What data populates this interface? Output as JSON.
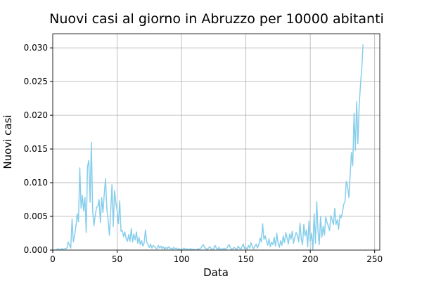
{
  "chart_data": {
    "type": "line",
    "title": "Nuovi casi al giorno in Abruzzo per 10000 abitanti",
    "x_label": "Data",
    "y_label": "Nuovi casi",
    "xlim": [
      0,
      254
    ],
    "ylim": [
      0,
      0.0321
    ],
    "xticks": [
      0,
      50,
      100,
      150,
      200,
      250
    ],
    "yticks": [
      {
        "value": 0,
        "label": "0.000"
      },
      {
        "value": 0.005,
        "label": "0.005"
      },
      {
        "value": 0.01,
        "label": "0.010"
      },
      {
        "value": 0.015,
        "label": "0.015"
      },
      {
        "value": 0.02,
        "label": "0.020"
      },
      {
        "value": 0.025,
        "label": "0.025"
      },
      {
        "value": 0.03,
        "label": "0.030"
      }
    ],
    "grid": true,
    "x": [
      0,
      1,
      2,
      3,
      4,
      5,
      6,
      7,
      8,
      9,
      10,
      11,
      12,
      13,
      14,
      15,
      16,
      17,
      18,
      19,
      20,
      21,
      22,
      23,
      24,
      25,
      26,
      27,
      28,
      29,
      30,
      31,
      32,
      33,
      34,
      35,
      36,
      37,
      38,
      39,
      40,
      41,
      42,
      43,
      44,
      45,
      46,
      47,
      48,
      49,
      50,
      51,
      52,
      53,
      54,
      55,
      56,
      57,
      58,
      59,
      60,
      61,
      62,
      63,
      64,
      65,
      66,
      67,
      68,
      69,
      70,
      71,
      72,
      73,
      74,
      75,
      76,
      77,
      78,
      79,
      80,
      81,
      82,
      83,
      84,
      85,
      86,
      87,
      88,
      89,
      90,
      91,
      92,
      93,
      94,
      95,
      96,
      97,
      98,
      99,
      100,
      101,
      102,
      103,
      104,
      105,
      106,
      107,
      108,
      109,
      110,
      111,
      112,
      113,
      114,
      115,
      116,
      117,
      118,
      119,
      120,
      121,
      122,
      123,
      124,
      125,
      126,
      127,
      128,
      129,
      130,
      131,
      132,
      133,
      134,
      135,
      136,
      137,
      138,
      139,
      140,
      141,
      142,
      143,
      144,
      145,
      146,
      147,
      148,
      149,
      150,
      151,
      152,
      153,
      154,
      155,
      156,
      157,
      158,
      159,
      160,
      161,
      162,
      163,
      164,
      165,
      166,
      167,
      168,
      169,
      170,
      171,
      172,
      173,
      174,
      175,
      176,
      177,
      178,
      179,
      180,
      181,
      182,
      183,
      184,
      185,
      186,
      187,
      188,
      189,
      190,
      191,
      192,
      193,
      194,
      195,
      196,
      197,
      198,
      199,
      200,
      201,
      202,
      203,
      204,
      205,
      206,
      207,
      208,
      209,
      210,
      211,
      212,
      213,
      214,
      215,
      216,
      217,
      218,
      219,
      220,
      221,
      222,
      223,
      224,
      225,
      226,
      227,
      228,
      229,
      230,
      231,
      232,
      233,
      234,
      235,
      236,
      237,
      238,
      239,
      240,
      241
    ],
    "series": [
      {
        "color": "#87ceeb",
        "values": [
          0,
          0,
          0,
          0.0001,
          0.0002,
          0.0001,
          0.0001,
          0.0002,
          0.0001,
          0.0002,
          0.0002,
          0.0003,
          0.0012,
          0.0007,
          0.0003,
          0.0046,
          0.0012,
          0.0022,
          0.0035,
          0.0054,
          0.0042,
          0.0122,
          0.0062,
          0.0081,
          0.0058,
          0.0078,
          0.0026,
          0.0124,
          0.0133,
          0.0071,
          0.016,
          0.0058,
          0.0036,
          0.0052,
          0.0063,
          0.0065,
          0.0075,
          0.0041,
          0.0078,
          0.0056,
          0.0083,
          0.0106,
          0.0061,
          0.0045,
          0.0022,
          0.0057,
          0.0097,
          0.0035,
          0.0088,
          0.0071,
          0.0058,
          0.0039,
          0.0073,
          0.0028,
          0.0029,
          0.002,
          0.0027,
          0.0017,
          0.0013,
          0.0023,
          0.0013,
          0.0032,
          0.0012,
          0.0024,
          0.0015,
          0.0027,
          0.001,
          0.0019,
          0.0008,
          0.0014,
          0.0006,
          0.0011,
          0.003,
          0.0012,
          0.0008,
          0.0004,
          0.0009,
          0.0003,
          0.0007,
          0.0005,
          0.0003,
          0.0002,
          0.0007,
          0.0003,
          0.0006,
          0.0002,
          0.0005,
          0.0001,
          0.0004,
          0.0002,
          0.0005,
          0.0002,
          0.0003,
          0.0001,
          0.0004,
          0.0002,
          0.0003,
          0.0001,
          0.0002,
          0.0001,
          0.0002,
          0.0001,
          0.0003,
          0.0001,
          0.0002,
          0.0001,
          0.0001,
          0.0002,
          0.0001,
          0.0001,
          0.0001,
          0,
          0.0001,
          0.0002,
          0.0001,
          0.0003,
          0.0006,
          0.0008,
          0.0004,
          0.0002,
          0.0001,
          0.0003,
          0.0005,
          0.0002,
          0.0001,
          0.0002,
          0.0007,
          0.0003,
          0.0001,
          0.0004,
          0.0001,
          0.0002,
          0.0001,
          0.0003,
          0.0001,
          0.0002,
          0.0006,
          0.0008,
          0.0003,
          0.0001,
          0.0002,
          0.0004,
          0.0002,
          0.0001,
          0.0006,
          0.0003,
          0.0001,
          0.0005,
          0.0009,
          0.0002,
          0.0004,
          0.0001,
          0.0007,
          0.0003,
          0.0011,
          0.0005,
          0.0002,
          0.0006,
          0.0009,
          0.0003,
          0.0008,
          0.0018,
          0.0012,
          0.0039,
          0.0016,
          0.0021,
          0.0013,
          0.0007,
          0.0017,
          0.0005,
          0.0012,
          0.0008,
          0.0019,
          0.0006,
          0.0025,
          0.001,
          0.0004,
          0.0014,
          0.0007,
          0.0021,
          0.0011,
          0.0026,
          0.0018,
          0.0009,
          0.0024,
          0.0016,
          0.0028,
          0.001,
          0.0019,
          0.0026,
          0.0022,
          0.0012,
          0.004,
          0.0017,
          0.0008,
          0.0038,
          0.0021,
          0.003,
          0.0005,
          0.0043,
          0.0013,
          0.0025,
          0,
          0.0054,
          0.001,
          0.0072,
          0.0028,
          0.0008,
          0.005,
          0.0019,
          0.0035,
          0.0022,
          0.0049,
          0.0041,
          0.0036,
          0.0029,
          0.0051,
          0.0045,
          0.0038,
          0.0062,
          0.0038,
          0.0045,
          0.0031,
          0.0052,
          0.0048,
          0.0056,
          0.0068,
          0.0072,
          0.0102,
          0.0095,
          0.0078,
          0.0112,
          0.0145,
          0.0125,
          0.0203,
          0.0148,
          0.022,
          0.0158,
          0.0215,
          0.0245,
          0.027,
          0.0305
        ]
      }
    ]
  }
}
